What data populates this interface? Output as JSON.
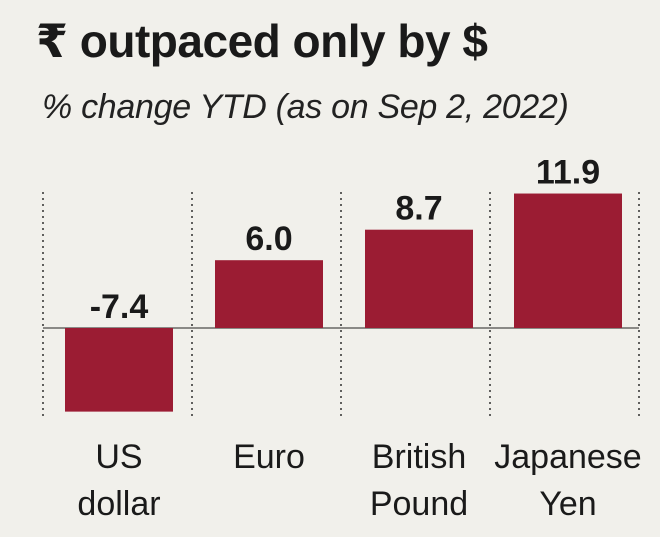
{
  "title": "₹ outpaced only by $",
  "subtitle": "% change YTD (as on Sep 2, 2022)",
  "colors": {
    "bar": "#9b1c33",
    "background": "#f1f0eb",
    "divider": "#222222"
  },
  "chart_data": {
    "type": "bar",
    "title": "₹ outpaced only by $",
    "subtitle": "% change YTD (as on Sep 2, 2022)",
    "categories": [
      [
        "US",
        "dollar"
      ],
      [
        "Euro"
      ],
      [
        "British",
        "Pound"
      ],
      [
        "Japanese",
        "Yen"
      ]
    ],
    "values": [
      -7.4,
      6.0,
      8.7,
      11.9
    ],
    "value_labels": [
      "-7.4",
      "6.0",
      "8.7",
      "11.9"
    ],
    "xlabel": "",
    "ylabel": "",
    "ylim": [
      -7.4,
      11.9
    ],
    "grid": false,
    "legend": "none"
  }
}
